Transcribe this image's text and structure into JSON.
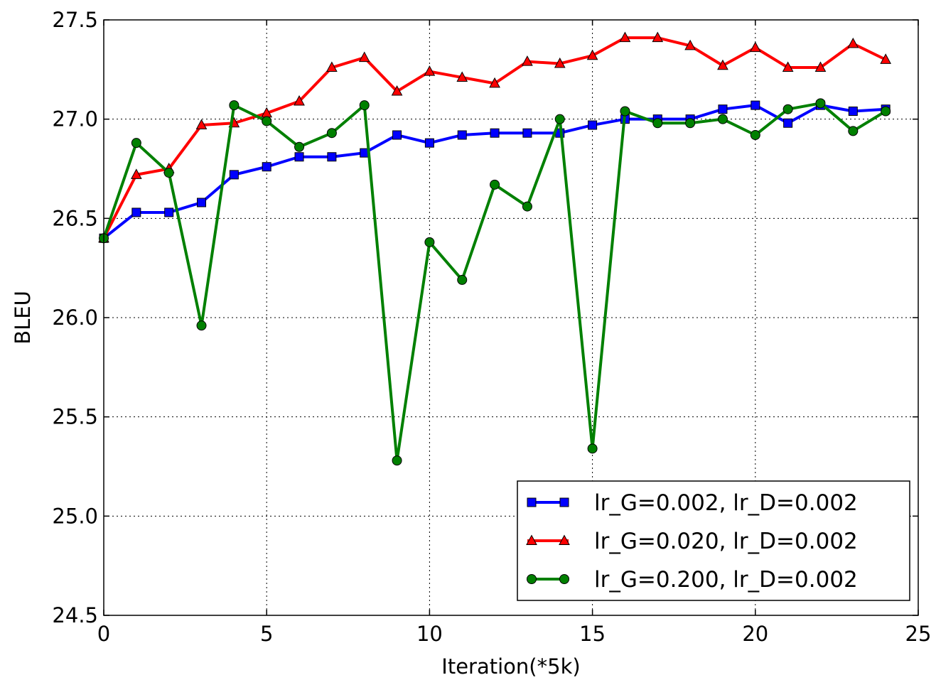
{
  "chart_data": {
    "type": "line",
    "title": "",
    "xlabel": "Iteration(*5k)",
    "ylabel": "BLEU",
    "xlim": [
      0,
      25
    ],
    "ylim": [
      24.5,
      27.5
    ],
    "xticks": [
      0,
      5,
      10,
      15,
      20,
      25
    ],
    "yticks": [
      24.5,
      25.0,
      25.5,
      26.0,
      26.5,
      27.0,
      27.5
    ],
    "grid": true,
    "legend_position": "lower-right",
    "x": [
      0,
      1,
      2,
      3,
      4,
      5,
      6,
      7,
      8,
      9,
      10,
      11,
      12,
      13,
      14,
      15,
      16,
      17,
      18,
      19,
      20,
      21,
      22,
      23,
      24
    ],
    "series": [
      {
        "name": "lr_G=0.002, lr_D=0.002",
        "color": "#0000ff",
        "marker": "square",
        "values": [
          26.4,
          26.53,
          26.53,
          26.58,
          26.72,
          26.76,
          26.81,
          26.81,
          26.83,
          26.92,
          26.88,
          26.92,
          26.93,
          26.93,
          26.93,
          26.97,
          27.0,
          27.0,
          27.0,
          27.05,
          27.07,
          26.98,
          27.07,
          27.04,
          27.05
        ]
      },
      {
        "name": "lr_G=0.020, lr_D=0.002",
        "color": "#ff0000",
        "marker": "triangle",
        "values": [
          26.4,
          26.72,
          26.75,
          26.97,
          26.98,
          27.03,
          27.09,
          27.26,
          27.31,
          27.14,
          27.24,
          27.21,
          27.18,
          27.29,
          27.28,
          27.32,
          27.41,
          27.41,
          27.37,
          27.27,
          27.36,
          27.26,
          27.26,
          27.38,
          27.3
        ]
      },
      {
        "name": "lr_G=0.200, lr_D=0.002",
        "color": "#008000",
        "marker": "circle",
        "values": [
          26.4,
          26.88,
          26.73,
          25.96,
          27.07,
          26.99,
          26.86,
          26.93,
          27.07,
          25.28,
          26.38,
          26.19,
          26.67,
          26.56,
          27.0,
          25.34,
          27.04,
          26.98,
          26.98,
          27.0,
          26.92,
          27.05,
          27.08,
          26.94,
          27.04
        ]
      }
    ]
  }
}
